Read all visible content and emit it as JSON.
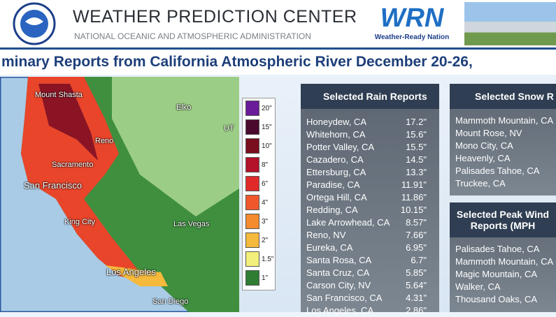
{
  "header": {
    "agency_title": "WEATHER PREDICTION CENTER",
    "agency_subtitle": "NATIONAL OCEANIC AND ATMOSPHERIC ADMINISTRATION",
    "logo_text": "WRN",
    "logo_caption": "Weather-Ready Nation"
  },
  "title": "minary Reports from California Atmospheric River December 20-26,",
  "map": {
    "labels": [
      "Mount Shasta",
      "Elko",
      "Reno",
      "Sacramento",
      "San Francisco",
      "UT",
      "King City",
      "Las Vegas",
      "Los Angeles",
      "San Diego"
    ],
    "legend": [
      {
        "label": "20\"",
        "color": "#6a1b9a"
      },
      {
        "label": "15\"",
        "color": "#4a0a2e"
      },
      {
        "label": "10\"",
        "color": "#7a0d1e"
      },
      {
        "label": "8\"",
        "color": "#b3122a"
      },
      {
        "label": "6\"",
        "color": "#e02a2a"
      },
      {
        "label": "4\"",
        "color": "#f0582c"
      },
      {
        "label": "3\"",
        "color": "#f58b2f"
      },
      {
        "label": "2\"",
        "color": "#f5b93b"
      },
      {
        "label": "1.5\"",
        "color": "#f2ef7a"
      },
      {
        "label": "1\"",
        "color": "#2f7d32"
      }
    ]
  },
  "rain": {
    "title": "Selected Rain Reports",
    "rows": [
      [
        "Honeydew, CA",
        "17.2\""
      ],
      [
        "Whitehorn, CA",
        "15.6\""
      ],
      [
        "Potter Valley, CA",
        "15.5\""
      ],
      [
        "Cazadero, CA",
        "14.5\""
      ],
      [
        "Ettersburg, CA",
        "13.3\""
      ],
      [
        "Paradise, CA",
        "11.91\""
      ],
      [
        "Ortega Hill, CA",
        "11.86\""
      ],
      [
        "Redding, CA",
        "10.15\""
      ],
      [
        "Lake Arrowhead, CA",
        "8.57\""
      ],
      [
        "Reno, NV",
        "7.66\""
      ],
      [
        "Eureka, CA",
        "6.95\""
      ],
      [
        "Santa Rosa, CA",
        "6.7\""
      ],
      [
        "Santa Cruz, CA",
        "5.85\""
      ],
      [
        "Carson City, NV",
        "5.64\""
      ],
      [
        "San Francisco, CA",
        "4.31\""
      ],
      [
        "Los Angeles, CA",
        "2.86\""
      ]
    ]
  },
  "snow": {
    "title": "Selected Snow R",
    "rows": [
      "Mammoth Mountain, CA",
      "Mount Rose, NV",
      "Mono City, CA",
      "Heavenly, CA",
      "Palisades Tahoe, CA",
      "Truckee, CA"
    ]
  },
  "wind": {
    "title_lines": [
      "Selected Peak Wind",
      "Reports (MPH"
    ],
    "rows": [
      "Palisades Tahoe, CA",
      "Mammoth Mountain, CA",
      "Magic Mountain, CA",
      "Walker, CA",
      "Thousand Oaks, CA"
    ]
  }
}
